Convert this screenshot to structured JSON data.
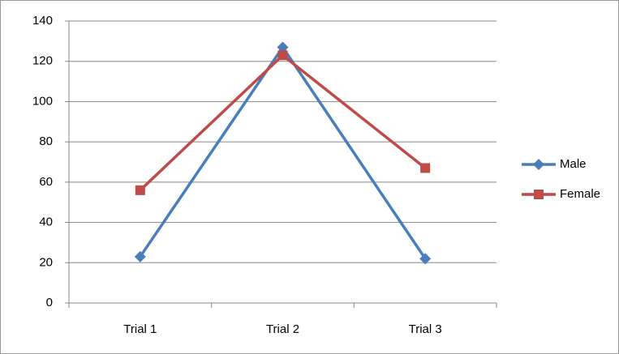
{
  "chart_data": {
    "type": "line",
    "categories": [
      "Trial 1",
      "Trial 2",
      "Trial 3"
    ],
    "series": [
      {
        "name": "Male",
        "color": "#4a7ebb",
        "marker": "diamond",
        "values": [
          23,
          127,
          22
        ]
      },
      {
        "name": "Female",
        "color": "#be4b48",
        "marker": "square",
        "values": [
          56,
          123,
          67
        ]
      }
    ],
    "ylim": [
      0,
      140
    ],
    "yticks": [
      0,
      20,
      40,
      60,
      80,
      100,
      120,
      140
    ],
    "grid": true,
    "legend": "right"
  }
}
